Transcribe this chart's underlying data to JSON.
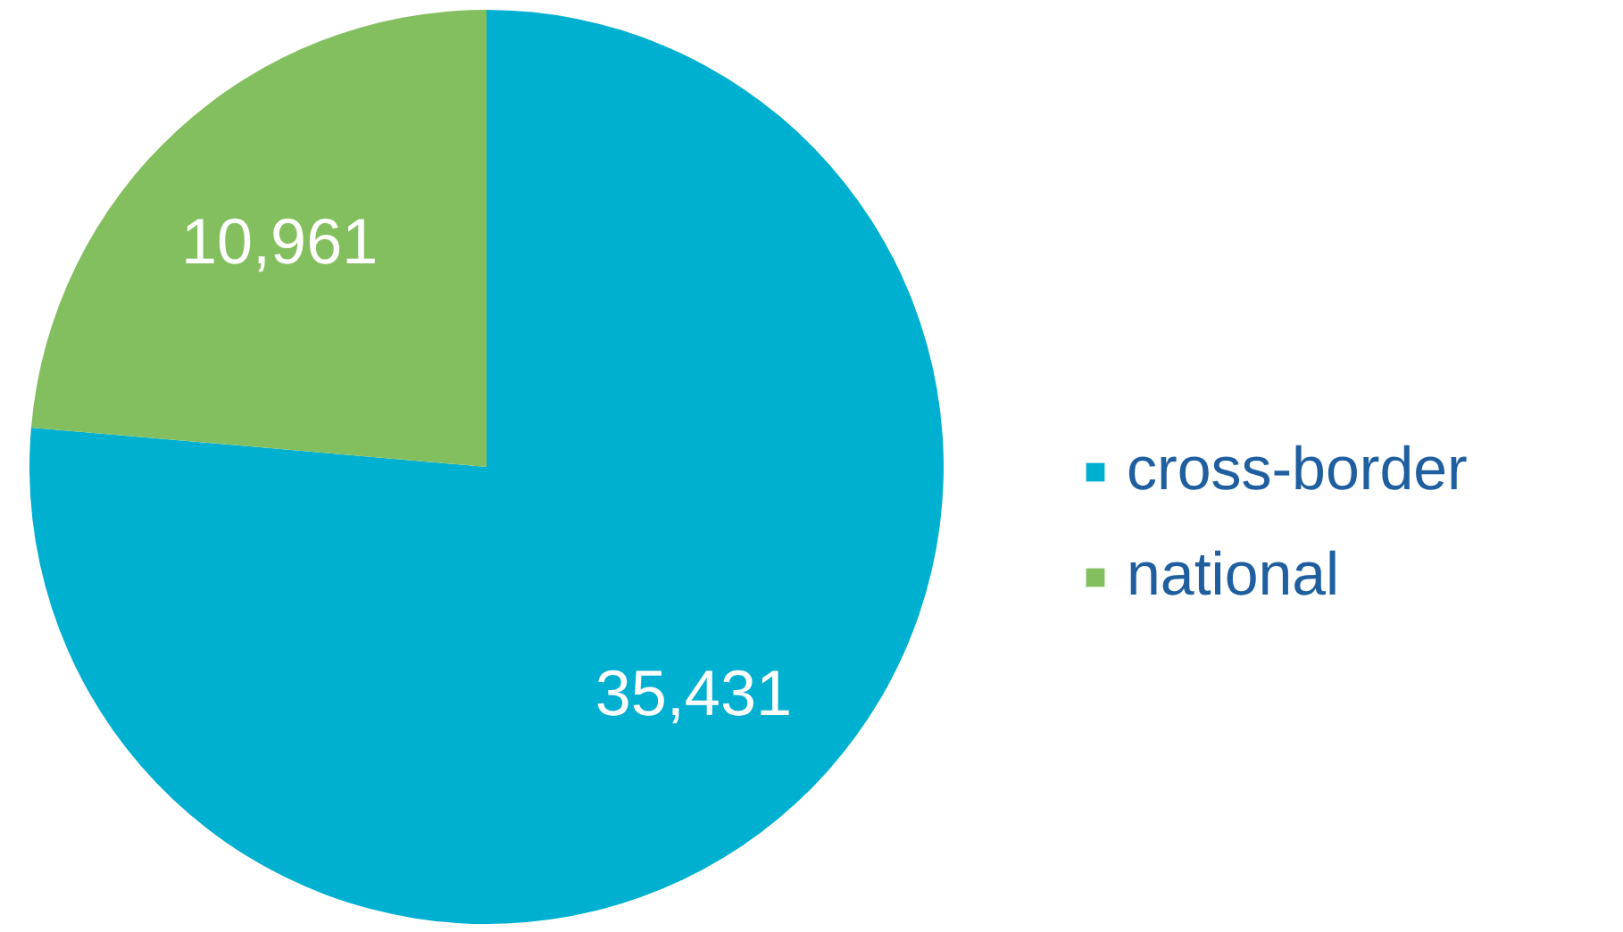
{
  "chart_data": {
    "type": "pie",
    "categories": [
      "cross-border",
      "national"
    ],
    "values": [
      35431,
      10961
    ],
    "colors": [
      "#00b0d0",
      "#84bf5f"
    ],
    "value_labels": [
      "35,431",
      "10,961"
    ],
    "legend": "right"
  }
}
